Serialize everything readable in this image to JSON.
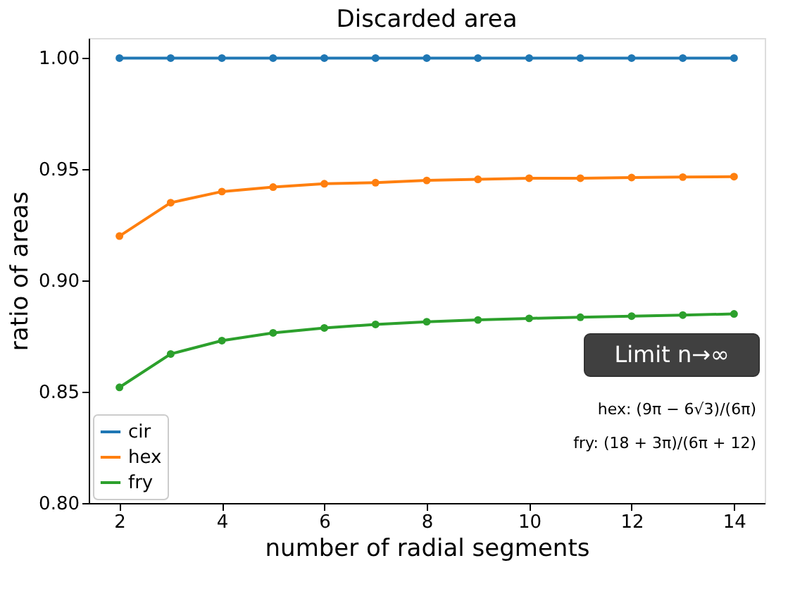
{
  "chart_data": {
    "type": "line",
    "title": "Discarded area",
    "xlabel": "number of radial segments",
    "ylabel": "ratio of areas",
    "x": [
      2,
      3,
      4,
      5,
      6,
      7,
      8,
      9,
      10,
      11,
      12,
      13,
      14
    ],
    "series": [
      {
        "name": "cir",
        "color": "#1f77b4",
        "values": [
          1.0,
          1.0,
          1.0,
          1.0,
          1.0,
          1.0,
          1.0,
          1.0,
          1.0,
          1.0,
          1.0,
          1.0,
          1.0
        ]
      },
      {
        "name": "hex",
        "color": "#ff7f0e",
        "values": [
          0.92,
          0.935,
          0.94,
          0.942,
          0.9435,
          0.944,
          0.945,
          0.9455,
          0.946,
          0.946,
          0.9463,
          0.9465,
          0.9467
        ]
      },
      {
        "name": "fry",
        "color": "#2ca02c",
        "values": [
          0.852,
          0.867,
          0.873,
          0.8765,
          0.8787,
          0.8803,
          0.8815,
          0.8823,
          0.883,
          0.8835,
          0.884,
          0.8845,
          0.885
        ]
      }
    ],
    "xlim": [
      1.4,
      14.6
    ],
    "xticks": [
      2,
      4,
      6,
      8,
      10,
      12,
      14
    ],
    "ylim": [
      0.8,
      1.009
    ],
    "yticks": [
      {
        "value": 0.8,
        "label": "0.80"
      },
      {
        "value": 0.85,
        "label": "0.85"
      },
      {
        "value": 0.9,
        "label": "0.90"
      },
      {
        "value": 0.95,
        "label": "0.95"
      },
      {
        "value": 1.0,
        "label": "1.00"
      }
    ],
    "annotations": [
      "Limit n→∞",
      "hex: (9π − 6√3)/(6π)",
      "fry: (18 + 3π)/(6π + 12)"
    ],
    "legend": "bottom left",
    "marker": "circle",
    "line_style": "solid",
    "grid": false
  }
}
